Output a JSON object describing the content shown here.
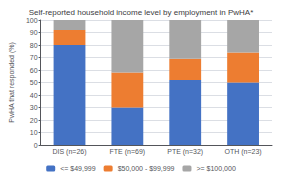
{
  "chart_data": {
    "type": "bar",
    "title": "Self-reported household income level by employment in PwHA*",
    "ylabel": "PwHA that responded (%)",
    "categories": [
      "DIS (n=26)",
      "FTE (n=69)",
      "PTE (n=32)",
      "OTH (n=23)"
    ],
    "series": [
      {
        "name": "<= $49,999",
        "values": [
          80,
          30,
          52,
          50
        ],
        "color": "#4472c4"
      },
      {
        "name": "$50,000 - $99,999",
        "values": [
          12,
          28,
          17,
          24
        ],
        "color": "#ed7d31"
      },
      {
        "name": ">= $100,000",
        "values": [
          8,
          42,
          31,
          26
        ],
        "color": "#a6a6a6"
      }
    ],
    "stacked": true,
    "ylim": [
      0,
      100
    ],
    "yticks": [
      0,
      10,
      20,
      30,
      40,
      50,
      60,
      70,
      80,
      90,
      100
    ],
    "grid": true,
    "legend": "bottom"
  }
}
